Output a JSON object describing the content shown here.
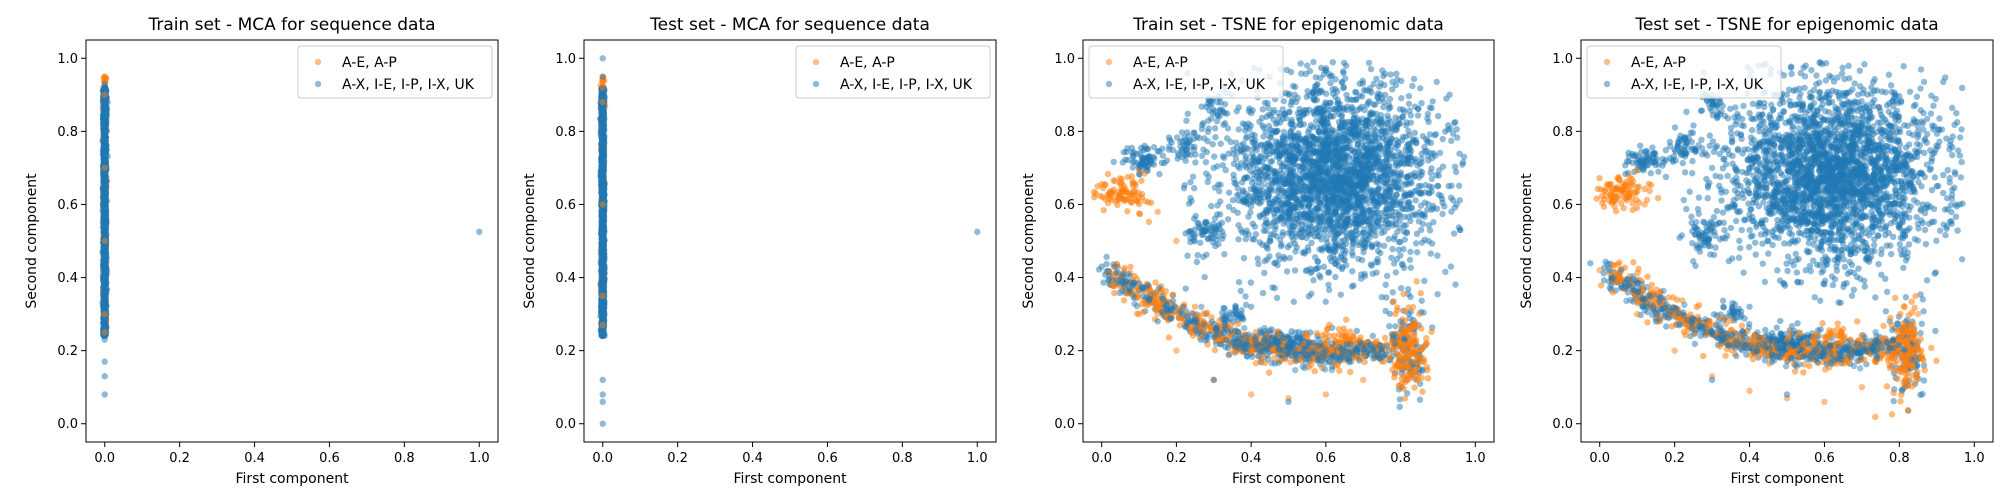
{
  "colors": {
    "orange": "#ff7f0e",
    "blue": "#1f77b4"
  },
  "chart_data": [
    {
      "type": "scatter",
      "title": "Train set - MCA for sequence data",
      "xlabel": "First component",
      "ylabel": "Second component",
      "xlim": [
        -0.05,
        1.05
      ],
      "ylim": [
        -0.05,
        1.05
      ],
      "xticks": [
        "0.0",
        "0.2",
        "0.4",
        "0.6",
        "0.8",
        "1.0"
      ],
      "yticks": [
        "0.0",
        "0.2",
        "0.4",
        "0.6",
        "0.8",
        "1.0"
      ],
      "legend": {
        "placement": "top-right"
      },
      "series": [
        {
          "name": "A-E, A-P",
          "color": "#ff7f0e",
          "alpha": 0.5,
          "points": [
            [
              0.0,
              0.95
            ],
            [
              0.0,
              0.9
            ],
            [
              0.0,
              0.7
            ],
            [
              0.0,
              0.5
            ],
            [
              0.0,
              0.3
            ],
            [
              0.0,
              0.25
            ]
          ]
        },
        {
          "name": "A-X, I-E, I-P, I-X, UK",
          "color": "#1f77b4",
          "alpha": 0.5,
          "points": [
            [
              0.0,
              0.93
            ],
            [
              0.0,
              0.8
            ],
            [
              0.0,
              0.6
            ],
            [
              0.0,
              0.4
            ],
            [
              0.0,
              0.23
            ],
            [
              0.0,
              0.17
            ],
            [
              0.0,
              0.13
            ],
            [
              0.0,
              0.08
            ],
            [
              1.0,
              0.525
            ]
          ]
        }
      ]
    },
    {
      "type": "scatter",
      "title": "Test set - MCA for sequence data",
      "xlabel": "First component",
      "ylabel": "Second component",
      "xlim": [
        -0.05,
        1.05
      ],
      "ylim": [
        -0.05,
        1.05
      ],
      "xticks": [
        "0.0",
        "0.2",
        "0.4",
        "0.6",
        "0.8",
        "1.0"
      ],
      "yticks": [
        "0.0",
        "0.2",
        "0.4",
        "0.6",
        "0.8",
        "1.0"
      ],
      "legend": {
        "placement": "top-right"
      },
      "series": [
        {
          "name": "A-E, A-P",
          "color": "#ff7f0e",
          "alpha": 0.5,
          "points": [
            [
              0.0,
              0.94
            ],
            [
              0.0,
              0.92
            ],
            [
              0.0,
              0.88
            ],
            [
              0.0,
              0.6
            ],
            [
              0.0,
              0.35
            ],
            [
              0.0,
              0.27
            ]
          ]
        },
        {
          "name": "A-X, I-E, I-P, I-X, UK",
          "color": "#1f77b4",
          "alpha": 0.5,
          "points": [
            [
              0.0,
              1.0
            ],
            [
              0.0,
              0.95
            ],
            [
              0.0,
              0.8
            ],
            [
              0.0,
              0.5
            ],
            [
              0.0,
              0.25
            ],
            [
              0.0,
              0.12
            ],
            [
              0.0,
              0.08
            ],
            [
              0.0,
              0.06
            ],
            [
              0.0,
              0.0
            ],
            [
              1.0,
              0.525
            ]
          ]
        }
      ]
    },
    {
      "type": "scatter",
      "title": "Train set - TSNE for epigenomic data",
      "xlabel": "First component",
      "ylabel": "Second component",
      "xlim": [
        -0.05,
        1.05
      ],
      "ylim": [
        -0.05,
        1.05
      ],
      "xticks": [
        "0.0",
        "0.2",
        "0.4",
        "0.6",
        "0.8",
        "1.0"
      ],
      "yticks": [
        "0.0",
        "0.2",
        "0.4",
        "0.6",
        "0.8",
        "1.0"
      ],
      "legend": {
        "placement": "top-left"
      },
      "series": [
        {
          "name": "A-E, A-P",
          "color": "#ff7f0e",
          "alpha": 0.5,
          "points": [
            [
              0.02,
              0.63
            ],
            [
              0.06,
              0.65
            ],
            [
              0.1,
              0.62
            ],
            [
              0.15,
              0.58
            ],
            [
              0.2,
              0.5
            ],
            [
              0.1,
              0.3
            ],
            [
              0.2,
              0.2
            ],
            [
              0.3,
              0.12
            ],
            [
              0.4,
              0.08
            ],
            [
              0.5,
              0.07
            ],
            [
              0.6,
              0.08
            ],
            [
              0.7,
              0.12
            ],
            [
              0.77,
              0.18
            ],
            [
              0.82,
              0.25
            ],
            [
              0.85,
              0.3
            ],
            [
              0.6,
              0.22
            ],
            [
              0.65,
              0.25
            ]
          ]
        },
        {
          "name": "A-X, I-E, I-P, I-X, UK",
          "color": "#1f77b4",
          "alpha": 0.5,
          "points": [
            [
              0.3,
              0.7
            ],
            [
              0.4,
              0.85
            ],
            [
              0.5,
              0.9
            ],
            [
              0.55,
              0.98
            ],
            [
              0.6,
              0.8
            ],
            [
              0.7,
              0.7
            ],
            [
              0.8,
              0.6
            ],
            [
              0.9,
              0.65
            ],
            [
              0.95,
              0.6
            ],
            [
              0.45,
              0.5
            ],
            [
              0.55,
              0.42
            ],
            [
              0.4,
              0.32
            ],
            [
              0.1,
              0.7
            ],
            [
              0.18,
              0.75
            ],
            [
              0.0,
              0.43
            ],
            [
              0.15,
              0.28
            ],
            [
              0.3,
              0.12
            ],
            [
              0.5,
              0.06
            ],
            [
              0.6,
              0.2
            ],
            [
              0.8,
              0.28
            ]
          ]
        }
      ]
    },
    {
      "type": "scatter",
      "title": "Test set - TSNE for epigenomic data",
      "xlabel": "First component",
      "ylabel": "Second component",
      "xlim": [
        -0.05,
        1.05
      ],
      "ylim": [
        -0.05,
        1.05
      ],
      "xticks": [
        "0.0",
        "0.2",
        "0.4",
        "0.6",
        "0.8",
        "1.0"
      ],
      "yticks": [
        "0.0",
        "0.2",
        "0.4",
        "0.6",
        "0.8",
        "1.0"
      ],
      "legend": {
        "placement": "top-left"
      },
      "series": [
        {
          "name": "A-E, A-P",
          "color": "#ff7f0e",
          "alpha": 0.5,
          "points": [
            [
              0.02,
              0.65
            ],
            [
              0.08,
              0.66
            ],
            [
              0.12,
              0.6
            ],
            [
              0.0,
              0.42
            ],
            [
              0.1,
              0.3
            ],
            [
              0.2,
              0.2
            ],
            [
              0.3,
              0.13
            ],
            [
              0.4,
              0.09
            ],
            [
              0.5,
              0.07
            ],
            [
              0.6,
              0.06
            ],
            [
              0.7,
              0.1
            ],
            [
              0.78,
              0.18
            ],
            [
              0.83,
              0.27
            ],
            [
              0.85,
              0.3
            ],
            [
              0.6,
              0.22
            ],
            [
              0.65,
              0.26
            ]
          ]
        },
        {
          "name": "A-X, I-E, I-P, I-X, UK",
          "color": "#1f77b4",
          "alpha": 0.5,
          "points": [
            [
              0.3,
              0.7
            ],
            [
              0.4,
              0.85
            ],
            [
              0.5,
              0.9
            ],
            [
              0.55,
              0.98
            ],
            [
              0.6,
              0.8
            ],
            [
              0.7,
              0.7
            ],
            [
              0.8,
              0.6
            ],
            [
              0.9,
              0.65
            ],
            [
              0.95,
              0.6
            ],
            [
              0.45,
              0.5
            ],
            [
              0.55,
              0.42
            ],
            [
              0.4,
              0.32
            ],
            [
              0.1,
              0.72
            ],
            [
              0.2,
              0.75
            ],
            [
              0.15,
              0.28
            ],
            [
              0.3,
              0.12
            ],
            [
              0.5,
              0.08
            ],
            [
              0.6,
              0.2
            ]
          ]
        }
      ]
    }
  ]
}
